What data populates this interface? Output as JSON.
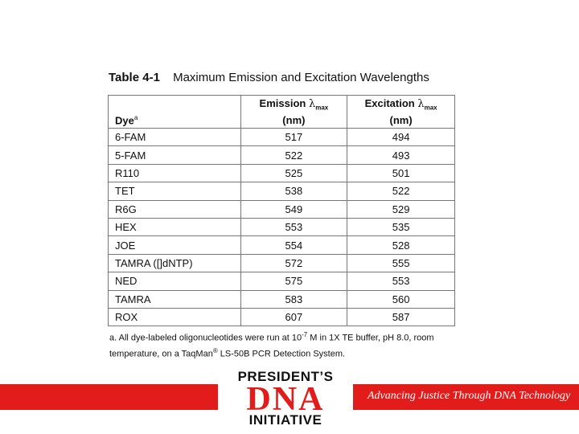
{
  "caption": {
    "number": "Table 4-1",
    "text": "Maximum Emission and Excitation Wavelengths"
  },
  "table": {
    "header": {
      "dye": "Dye",
      "dye_sup": "a",
      "emission": "Emission",
      "excitation": "Excitation",
      "lambda": "λ",
      "max": "max",
      "unit": "(nm)"
    },
    "rows": [
      {
        "dye": "6-FAM",
        "emission": "517",
        "excitation": "494"
      },
      {
        "dye": "5-FAM",
        "emission": "522",
        "excitation": "493"
      },
      {
        "dye": "R110",
        "emission": "525",
        "excitation": "501"
      },
      {
        "dye": "TET",
        "emission": "538",
        "excitation": "522"
      },
      {
        "dye": "R6G",
        "emission": "549",
        "excitation": "529"
      },
      {
        "dye": "HEX",
        "emission": "553",
        "excitation": "535"
      },
      {
        "dye": "JOE",
        "emission": "554",
        "excitation": "528"
      },
      {
        "dye": "TAMRA ([]dNTP)",
        "emission": "572",
        "excitation": "555"
      },
      {
        "dye": "NED",
        "emission": "575",
        "excitation": "553"
      },
      {
        "dye": "TAMRA",
        "emission": "583",
        "excitation": "560"
      },
      {
        "dye": "ROX",
        "emission": "607",
        "excitation": "587"
      }
    ]
  },
  "footnote": {
    "part1": "a.  All dye-labeled oligonucleotides were run at 10",
    "exp": "-7",
    "part2": " M in 1X TE buffer, pH 8.0, room temperature, on a TaqMan",
    "reg": "®",
    "part3": " LS-50B PCR Detection System."
  },
  "logo": {
    "line1": "PRESIDENT’S",
    "line2": "DNA",
    "line3": "INITIATIVE"
  },
  "tagline": "Advancing Justice Through DNA Technology",
  "colors": {
    "accent": "#e21b1b"
  }
}
